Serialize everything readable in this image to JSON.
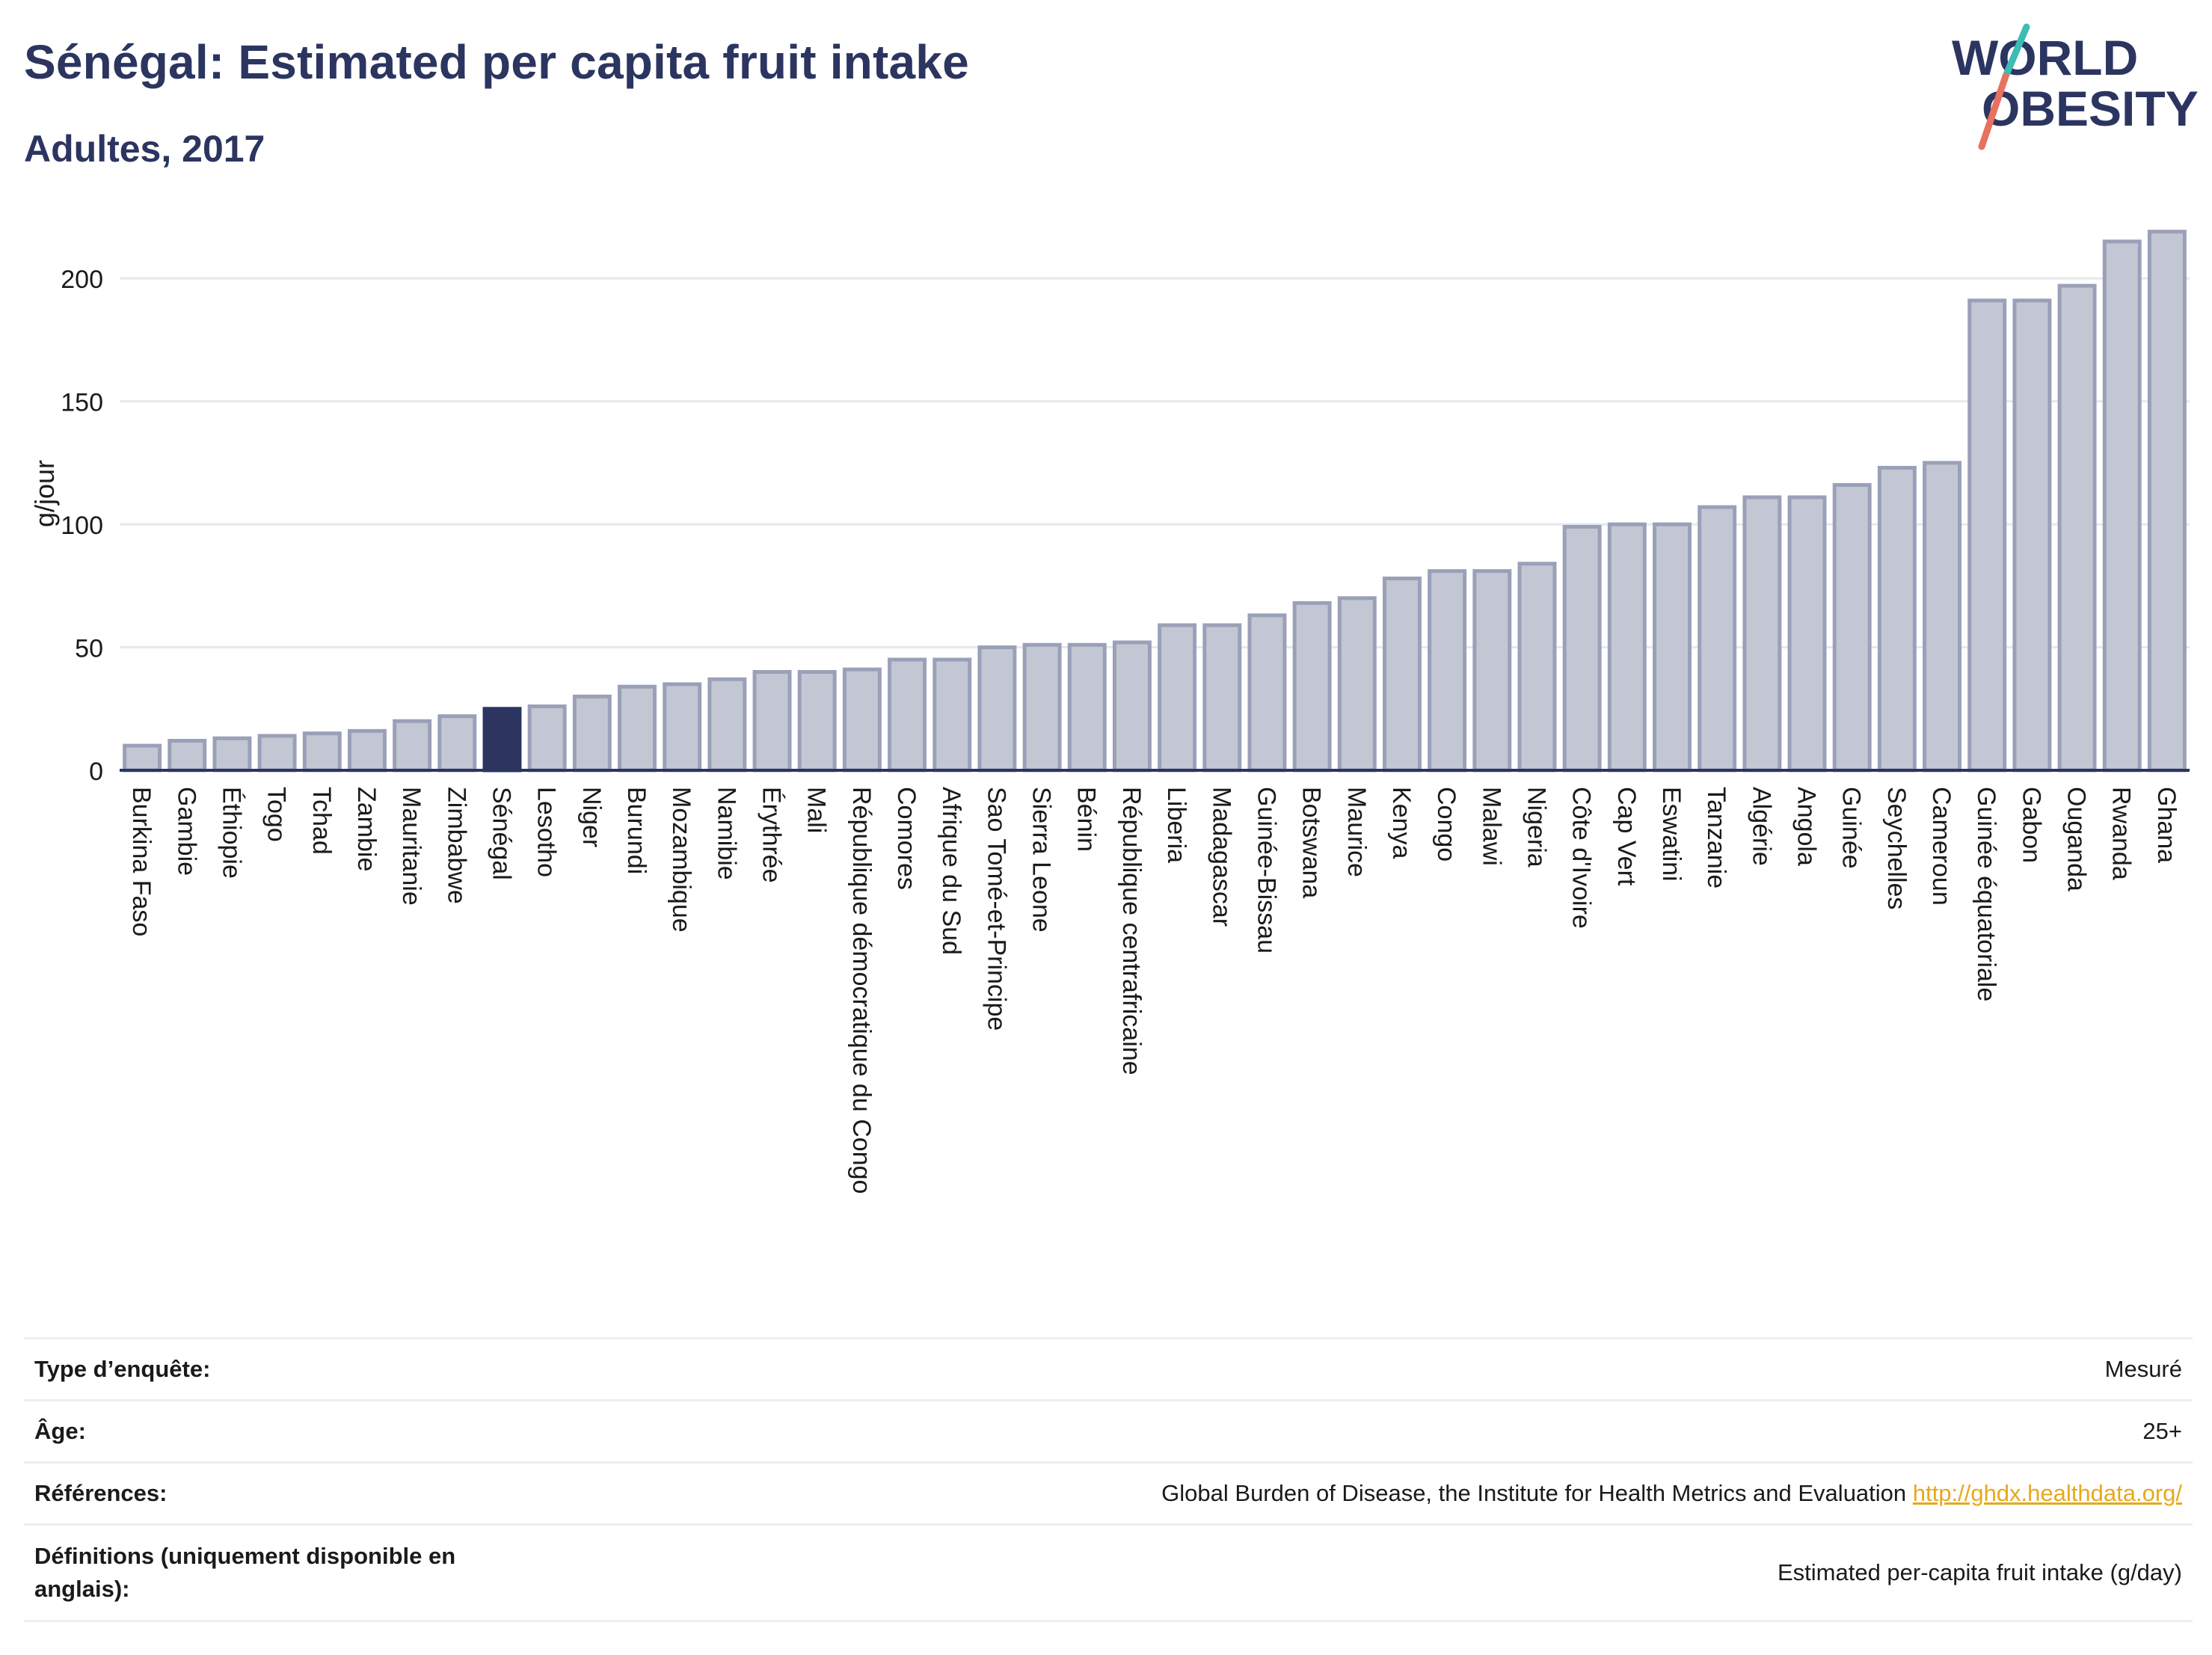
{
  "header": {
    "title": "Sénégal: Estimated per capita fruit intake",
    "subtitle": "Adultes, 2017",
    "logo_text": [
      "WORLD",
      "OBESITY"
    ]
  },
  "colors": {
    "title": "#2b3560",
    "bar": "#c3c7d3",
    "bar_border": "#9aa0b8",
    "highlight": "#2b3560",
    "grid": "#e6e8ee",
    "axis": "#2b3560",
    "link": "#e6a91c",
    "logo_teal": "#3cbcb4",
    "logo_coral": "#e8715f"
  },
  "chart_data": {
    "type": "bar",
    "ylabel": "g/jour",
    "xlabel": "",
    "ylim": [
      0,
      225
    ],
    "yticks": [
      0,
      50,
      100,
      150,
      200
    ],
    "grid": true,
    "highlight": "Sénégal",
    "categories": [
      "Burkina Faso",
      "Gambie",
      "Éthiopie",
      "Togo",
      "Tchad",
      "Zambie",
      "Mauritanie",
      "Zimbabwe",
      "Sénégal",
      "Lesotho",
      "Niger",
      "Burundi",
      "Mozambique",
      "Namibie",
      "Érythrée",
      "Mali",
      "République démocratique du Congo",
      "Comores",
      "Afrique du Sud",
      "Sao Tomé-et-Principe",
      "Sierra Leone",
      "Bénin",
      "République centrafricaine",
      "Liberia",
      "Madagascar",
      "Guinée-Bissau",
      "Botswana",
      "Maurice",
      "Kenya",
      "Congo",
      "Malawi",
      "Nigeria",
      "Côte d'Ivoire",
      "Cap Vert",
      "Eswatini",
      "Tanzanie",
      "Algérie",
      "Angola",
      "Guinée",
      "Seychelles",
      "Cameroun",
      "Guinée équatoriale",
      "Gabon",
      "Ouganda",
      "Rwanda",
      "Ghana"
    ],
    "values": [
      10,
      12,
      13,
      14,
      15,
      16,
      20,
      22,
      25,
      26,
      30,
      34,
      35,
      37,
      40,
      40,
      41,
      45,
      45,
      50,
      51,
      51,
      52,
      59,
      59,
      63,
      68,
      70,
      78,
      81,
      81,
      84,
      99,
      100,
      100,
      107,
      111,
      111,
      116,
      123,
      125,
      191,
      191,
      197,
      215,
      219
    ]
  },
  "info_table": [
    {
      "label": "Type d’enquête:",
      "value": "Mesuré"
    },
    {
      "label": "Âge:",
      "value": "25+"
    },
    {
      "label": "Références:",
      "value": "Global Burden of Disease, the Institute for Health Metrics and Evaluation",
      "link": "http://ghdx.healthdata.org/"
    },
    {
      "label": "Définitions (uniquement disponible en anglais):",
      "value": "Estimated per-capita fruit intake (g/day)"
    }
  ]
}
